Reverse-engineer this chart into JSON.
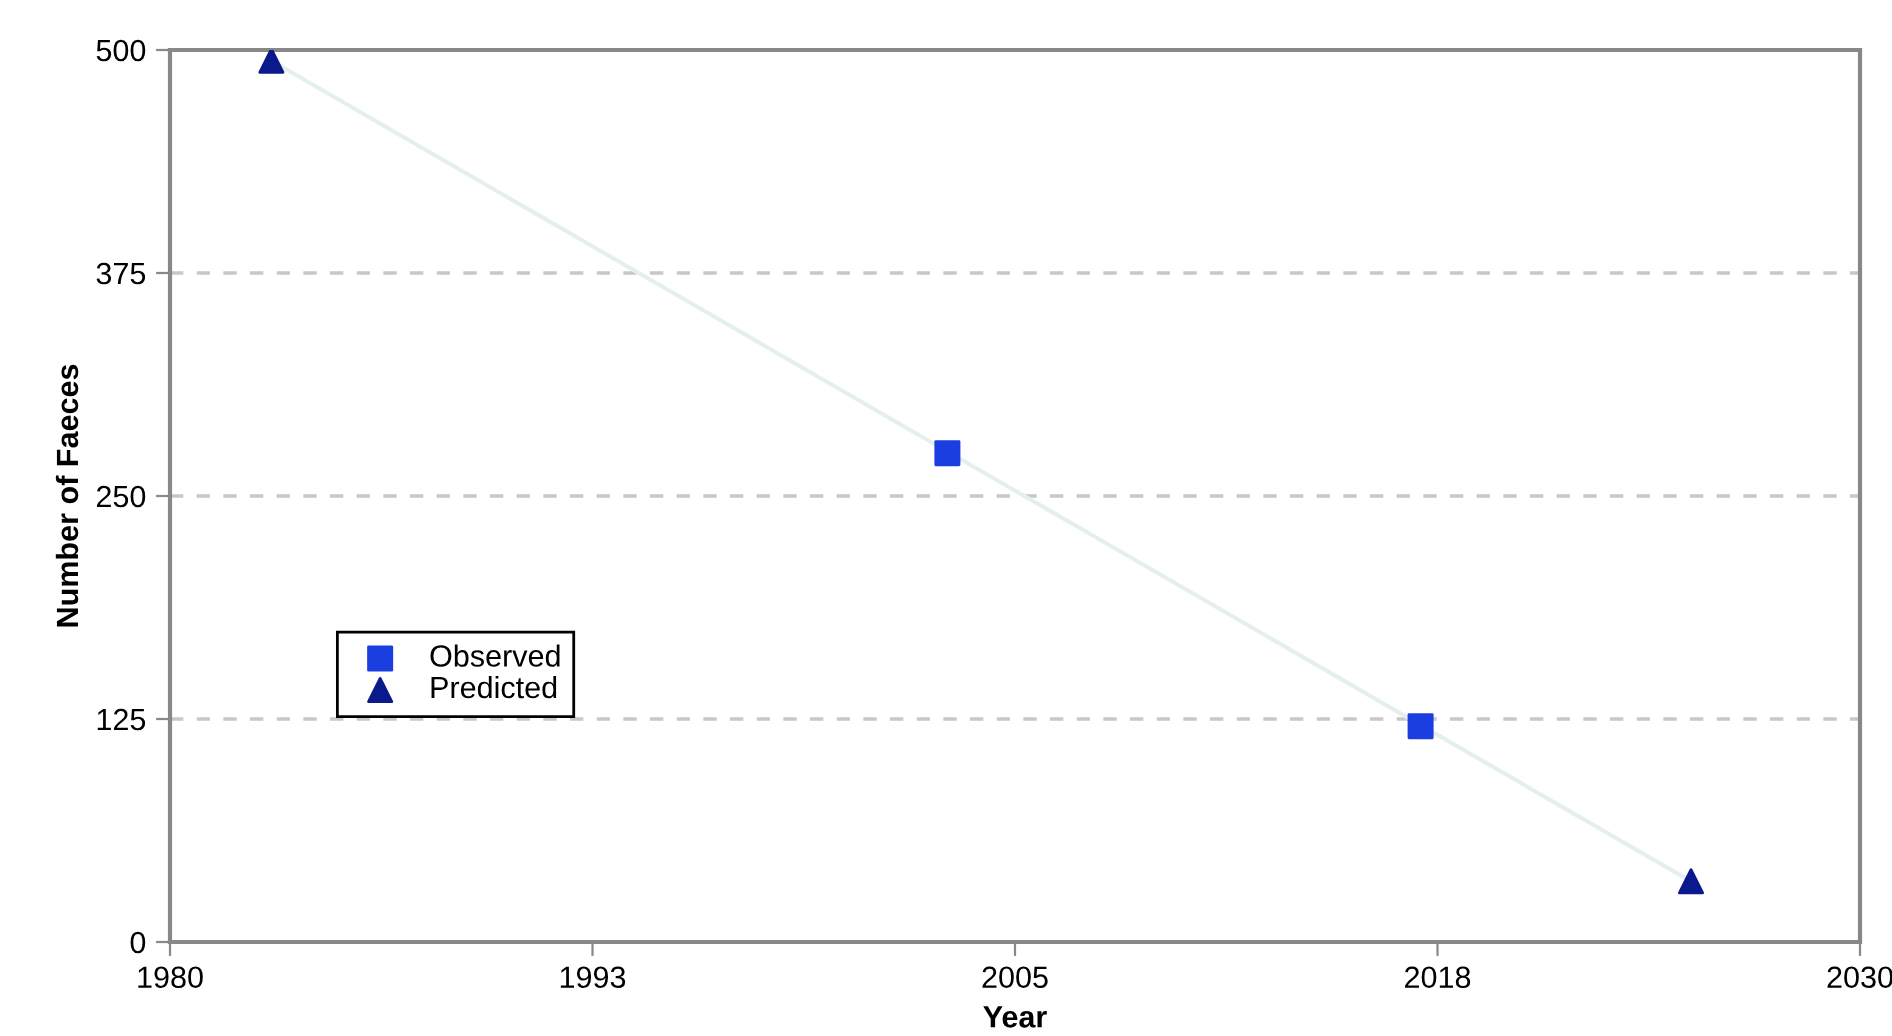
{
  "chart_data": {
    "type": "scatter",
    "xlabel": "Year",
    "ylabel": "Number of Faeces",
    "xlim": [
      1980,
      2030
    ],
    "ylim": [
      0,
      500
    ],
    "xticks": [
      1980,
      {
        "value": 1992.5,
        "label": "1993"
      },
      2005,
      {
        "value": 2017.5,
        "label": "2018"
      },
      2030
    ],
    "yticks": [
      0,
      125,
      250,
      375,
      500
    ],
    "grid": "y",
    "legend": "left",
    "series": [
      {
        "type": "line",
        "color": "#e6efef",
        "x": [
          1983,
          2025
        ],
        "values": [
          494,
          34
        ],
        "marker": "none"
      },
      {
        "name": "Observed",
        "color": "#1a3ee0",
        "marker": "square",
        "x": [
          2003,
          2017
        ],
        "values": [
          274,
          121
        ]
      },
      {
        "name": "Predicted",
        "color": "#0a1a8c",
        "marker": "triangle",
        "x": [
          1983,
          2025
        ],
        "values": [
          494,
          34
        ]
      }
    ]
  }
}
